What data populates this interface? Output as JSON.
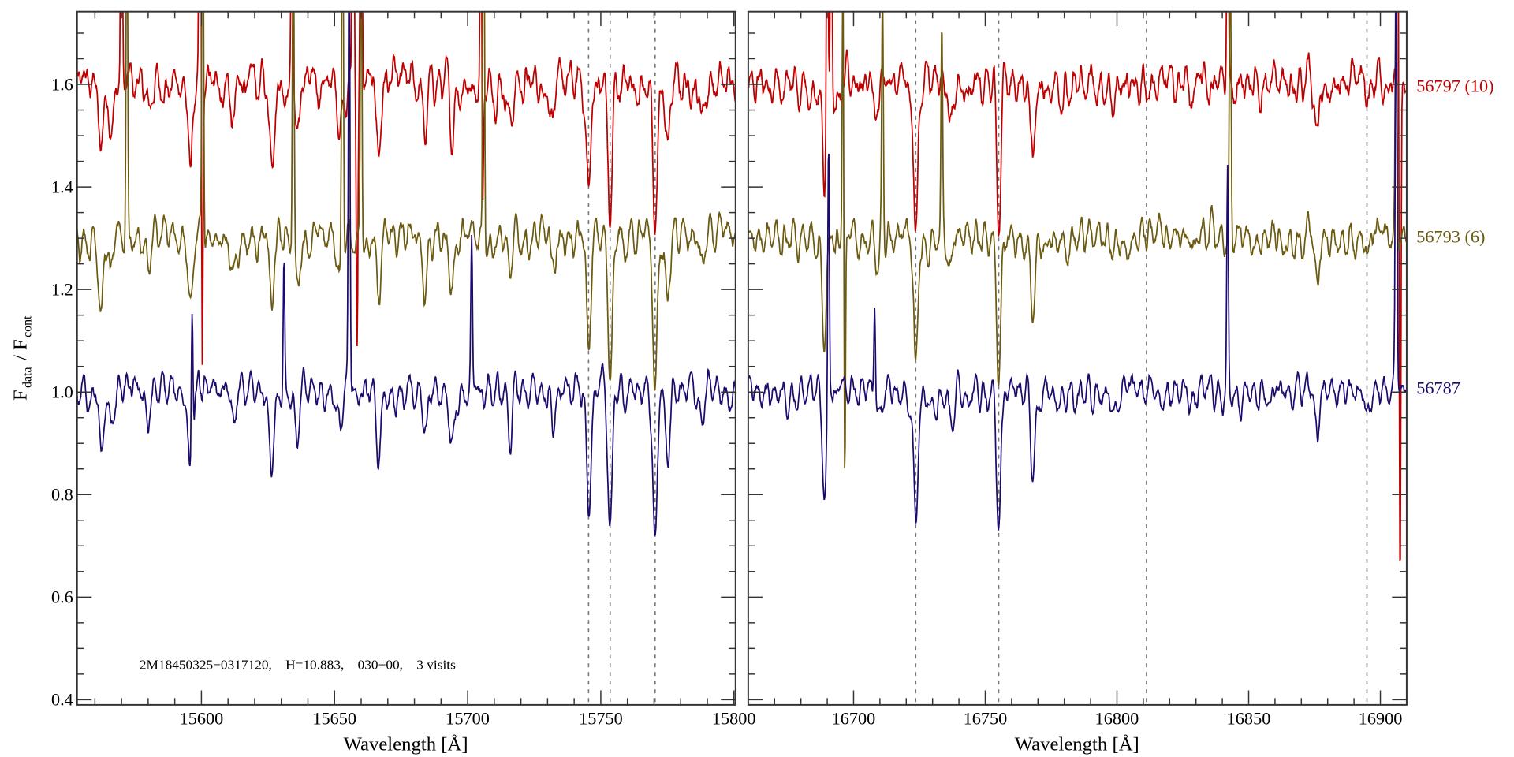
{
  "chart_data": {
    "type": "line",
    "ylabel_main": "F",
    "ylabel_sub1": "data",
    "ylabel_sep": " / F",
    "ylabel_sub2": "cont",
    "ylim": [
      0.39,
      1.742
    ],
    "yticks": [
      0.4,
      0.6,
      0.8,
      1.0,
      1.2,
      1.4,
      1.6
    ],
    "ytick_labels": [
      "0.4",
      "0.6",
      "0.8",
      "1.0",
      "1.2",
      "1.4",
      "1.6"
    ],
    "annotation": "2M18450325−0317120,    H=10.883,    030+00,    3 visits",
    "series": [
      {
        "name": "56797 (10)",
        "offset": 0.6,
        "color": "#c00000",
        "noise": 0.028
      },
      {
        "name": "56793 (6)",
        "offset": 0.3,
        "color": "#6b5a10",
        "noise": 0.022
      },
      {
        "name": "56787",
        "offset": 0.0,
        "color": "#1e0a6e",
        "noise": 0.02
      }
    ],
    "panels": [
      {
        "xlabel": "Wavelength [Å]",
        "xlim": [
          15553.3,
          15800.6
        ],
        "xticks": [
          15600,
          15650,
          15700,
          15750,
          15800
        ],
        "xtick_labels": [
          "15600",
          "15650",
          "15700",
          "15750",
          "15800"
        ],
        "dashed_lines": [
          15745.4,
          15753.5,
          15770.4
        ],
        "absorption_lines": [
          [
            15562.4,
            0.14
          ],
          [
            15566,
            0.08
          ],
          [
            15580,
            0.06
          ],
          [
            15595.9,
            0.17
          ],
          [
            15612,
            0.08
          ],
          [
            15626.4,
            0.14
          ],
          [
            15636,
            0.1
          ],
          [
            15652,
            0.08
          ],
          [
            15666.5,
            0.13
          ],
          [
            15684,
            0.1
          ],
          [
            15694,
            0.1
          ],
          [
            15716,
            0.08
          ],
          [
            15732,
            0.06
          ],
          [
            15745.4,
            0.22
          ],
          [
            15753.5,
            0.26
          ],
          [
            15770.4,
            0.3
          ],
          [
            15775,
            0.13
          ],
          [
            15788,
            0.06
          ]
        ],
        "spikes": [
          [
            [
              15570,
              0.6
            ],
            [
              15599.5,
              1.2
            ],
            [
              15600.3,
              -0.6
            ],
            [
              15634,
              0.6
            ],
            [
              15657,
              0.9
            ],
            [
              15658.5,
              -0.5
            ],
            [
              15660,
              0.8
            ],
            [
              15705,
              0.5
            ],
            [
              15705.6,
              -0.3
            ]
          ],
          [
            [
              15572,
              0.7
            ],
            [
              15600.5,
              0.9
            ],
            [
              15634.5,
              0.7
            ],
            [
              15653,
              0.9
            ],
            [
              15660,
              0.6
            ],
            [
              15706,
              0.9
            ]
          ],
          [
            [
              15596.5,
              0.3
            ],
            [
              15631,
              0.27
            ],
            [
              15655.5,
              0.9
            ],
            [
              15701.5,
              0.28
            ]
          ]
        ]
      },
      {
        "xlabel": "Wavelength [Å]",
        "xlim": [
          16660,
          16910
        ],
        "xticks": [
          16700,
          16750,
          16800,
          16850,
          16900
        ],
        "xtick_labels": [
          "16700",
          "16750",
          "16800",
          "16850",
          "16900"
        ],
        "dashed_lines": [
          16723.6,
          16755.1,
          16811.2,
          16894.9
        ],
        "absorption_lines": [
          [
            16689,
            0.2
          ],
          [
            16709,
            0.06
          ],
          [
            16723.6,
            0.27
          ],
          [
            16737,
            0.05
          ],
          [
            16755.1,
            0.27
          ],
          [
            16768,
            0.15
          ],
          [
            16799,
            0.03
          ],
          [
            16829,
            0.03
          ],
          [
            16876,
            0.08
          ],
          [
            16894.9,
            0.05
          ]
        ],
        "spikes": [
          [
            [
              16690,
              0.6
            ],
            [
              16691.5,
              0.5
            ],
            [
              16842,
              0.5
            ],
            [
              16906.5,
              0.6
            ],
            [
              16907.5,
              -0.95
            ]
          ],
          [
            [
              16696,
              0.6
            ],
            [
              16696.6,
              -0.55
            ],
            [
              16711,
              0.5
            ],
            [
              16733.5,
              0.4
            ],
            [
              16843,
              0.6
            ],
            [
              16906,
              0.6
            ]
          ],
          [
            [
              16690.5,
              0.5
            ],
            [
              16708,
              0.2
            ],
            [
              16842,
              0.4
            ],
            [
              16906,
              0.9
            ]
          ]
        ]
      }
    ]
  }
}
